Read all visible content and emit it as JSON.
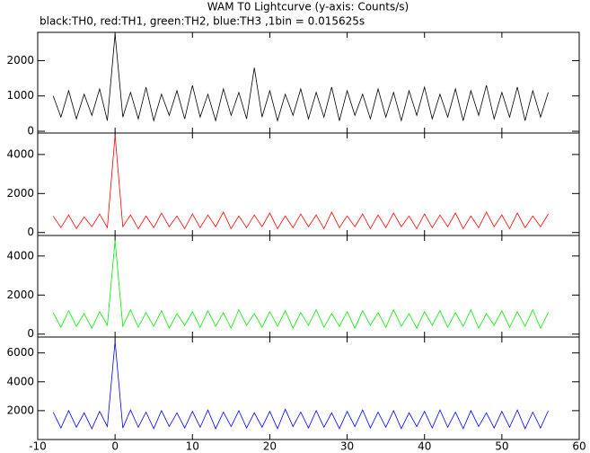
{
  "chart_data": [
    {
      "type": "line",
      "title": "WAM T0 Lightcurve (y-axis: Counts/s)",
      "subtitle": "black:TH0, red:TH1, green:TH2, blue:TH3 ,1bin = 0.015625s",
      "x": [
        -8,
        -7,
        -6,
        -5,
        -4,
        -3,
        -2,
        -1,
        0,
        1,
        2,
        3,
        4,
        5,
        6,
        7,
        8,
        9,
        10,
        11,
        12,
        13,
        14,
        15,
        16,
        17,
        18,
        19,
        20,
        21,
        22,
        23,
        24,
        25,
        26,
        27,
        28,
        29,
        30,
        31,
        32,
        33,
        34,
        35,
        36,
        37,
        38,
        39,
        40,
        41,
        42,
        43,
        44,
        45,
        46,
        47,
        48,
        49,
        50,
        51,
        52,
        53,
        54,
        55,
        56
      ],
      "series": [
        {
          "color": "#000000",
          "values": [
            1000,
            400,
            1150,
            350,
            1050,
            450,
            1200,
            300,
            2750,
            400,
            1100,
            350,
            1250,
            300,
            1050,
            450,
            1150,
            350,
            1300,
            400,
            1050,
            300,
            1200,
            450,
            1100,
            350,
            1800,
            400,
            1150,
            300,
            1050,
            450,
            1200,
            350,
            1100,
            400,
            1250,
            300,
            1150,
            450,
            1050,
            350,
            1200,
            400,
            1100,
            300,
            1150,
            450,
            1250,
            350,
            1050,
            400,
            1200,
            300,
            1150,
            450,
            1300,
            350,
            1100,
            400,
            1250,
            300,
            1150,
            400,
            1100
          ]
        }
      ],
      "xlim": [
        -10,
        60
      ],
      "xticks": [
        -10,
        0,
        10,
        20,
        30,
        40,
        50,
        60
      ],
      "ylim": [
        -50,
        2800
      ],
      "yticks": [
        0,
        1000,
        2000
      ]
    },
    {
      "type": "line",
      "x": [
        -8,
        -7,
        -6,
        -5,
        -4,
        -3,
        -2,
        -1,
        0,
        1,
        2,
        3,
        4,
        5,
        6,
        7,
        8,
        9,
        10,
        11,
        12,
        13,
        14,
        15,
        16,
        17,
        18,
        19,
        20,
        21,
        22,
        23,
        24,
        25,
        26,
        27,
        28,
        29,
        30,
        31,
        32,
        33,
        34,
        35,
        36,
        37,
        38,
        39,
        40,
        41,
        42,
        43,
        44,
        45,
        46,
        47,
        48,
        49,
        50,
        51,
        52,
        53,
        54,
        55,
        56
      ],
      "series": [
        {
          "color": "#ff0000",
          "values": [
            850,
            250,
            900,
            200,
            800,
            300,
            950,
            250,
            5000,
            300,
            900,
            200,
            850,
            250,
            1000,
            300,
            850,
            200,
            950,
            250,
            900,
            300,
            1050,
            200,
            850,
            250,
            900,
            300,
            1000,
            200,
            850,
            250,
            950,
            300,
            900,
            200,
            1050,
            250,
            850,
            300,
            950,
            200,
            900,
            250,
            1000,
            300,
            850,
            200,
            950,
            250,
            900,
            300,
            1000,
            200,
            850,
            250,
            1050,
            300,
            900,
            200,
            1000,
            250,
            850,
            300,
            950
          ]
        }
      ],
      "xlim": [
        -10,
        60
      ],
      "xticks": [
        -10,
        0,
        10,
        20,
        30,
        40,
        50,
        60
      ],
      "ylim": [
        -150,
        5100
      ],
      "yticks": [
        0,
        2000,
        4000
      ]
    },
    {
      "type": "line",
      "x": [
        -8,
        -7,
        -6,
        -5,
        -4,
        -3,
        -2,
        -1,
        0,
        1,
        2,
        3,
        4,
        5,
        6,
        7,
        8,
        9,
        10,
        11,
        12,
        13,
        14,
        15,
        16,
        17,
        18,
        19,
        20,
        21,
        22,
        23,
        24,
        25,
        26,
        27,
        28,
        29,
        30,
        31,
        32,
        33,
        34,
        35,
        36,
        37,
        38,
        39,
        40,
        41,
        42,
        43,
        44,
        45,
        46,
        47,
        48,
        49,
        50,
        51,
        52,
        53,
        54,
        55,
        56
      ],
      "series": [
        {
          "color": "#00ee00",
          "values": [
            1100,
            350,
            1200,
            400,
            1050,
            300,
            1150,
            450,
            4800,
            400,
            1250,
            350,
            1100,
            400,
            1200,
            300,
            1050,
            450,
            1150,
            350,
            1200,
            400,
            1100,
            300,
            1250,
            450,
            1050,
            350,
            1150,
            400,
            1200,
            300,
            1100,
            450,
            1250,
            350,
            1050,
            400,
            1150,
            300,
            1200,
            450,
            1100,
            350,
            1250,
            400,
            1050,
            300,
            1150,
            450,
            1200,
            350,
            1100,
            400,
            1250,
            300,
            1050,
            450,
            1200,
            350,
            1150,
            400,
            1250,
            300,
            1100
          ]
        }
      ],
      "xlim": [
        -10,
        60
      ],
      "xticks": [
        -10,
        0,
        10,
        20,
        30,
        40,
        50,
        60
      ],
      "ylim": [
        -150,
        5050
      ],
      "yticks": [
        0,
        2000,
        4000
      ]
    },
    {
      "type": "line",
      "x": [
        -8,
        -7,
        -6,
        -5,
        -4,
        -3,
        -2,
        -1,
        0,
        1,
        2,
        3,
        4,
        5,
        6,
        7,
        8,
        9,
        10,
        11,
        12,
        13,
        14,
        15,
        16,
        17,
        18,
        19,
        20,
        21,
        22,
        23,
        24,
        25,
        26,
        27,
        28,
        29,
        30,
        31,
        32,
        33,
        34,
        35,
        36,
        37,
        38,
        39,
        40,
        41,
        42,
        43,
        44,
        45,
        46,
        47,
        48,
        49,
        50,
        51,
        52,
        53,
        54,
        55,
        56
      ],
      "series": [
        {
          "color": "#0000ff",
          "values": [
            1900,
            800,
            2000,
            850,
            1850,
            750,
            1950,
            900,
            6800,
            800,
            2050,
            850,
            1900,
            750,
            2000,
            900,
            1850,
            800,
            1950,
            850,
            2050,
            750,
            1900,
            900,
            2000,
            800,
            1850,
            850,
            1950,
            750,
            2100,
            900,
            1900,
            800,
            2000,
            850,
            1850,
            750,
            1950,
            900,
            2050,
            800,
            1900,
            850,
            2000,
            750,
            1850,
            900,
            1950,
            800,
            2050,
            850,
            1900,
            750,
            2000,
            900,
            1850,
            800,
            1950,
            850,
            2050,
            750,
            1900,
            800,
            2000
          ]
        }
      ],
      "xlim": [
        -10,
        60
      ],
      "xticks": [
        -10,
        0,
        10,
        20,
        30,
        40,
        50,
        60
      ],
      "xticklabels": true,
      "ylim": [
        0,
        7100
      ],
      "yticks": [
        2000,
        4000,
        6000
      ]
    }
  ]
}
